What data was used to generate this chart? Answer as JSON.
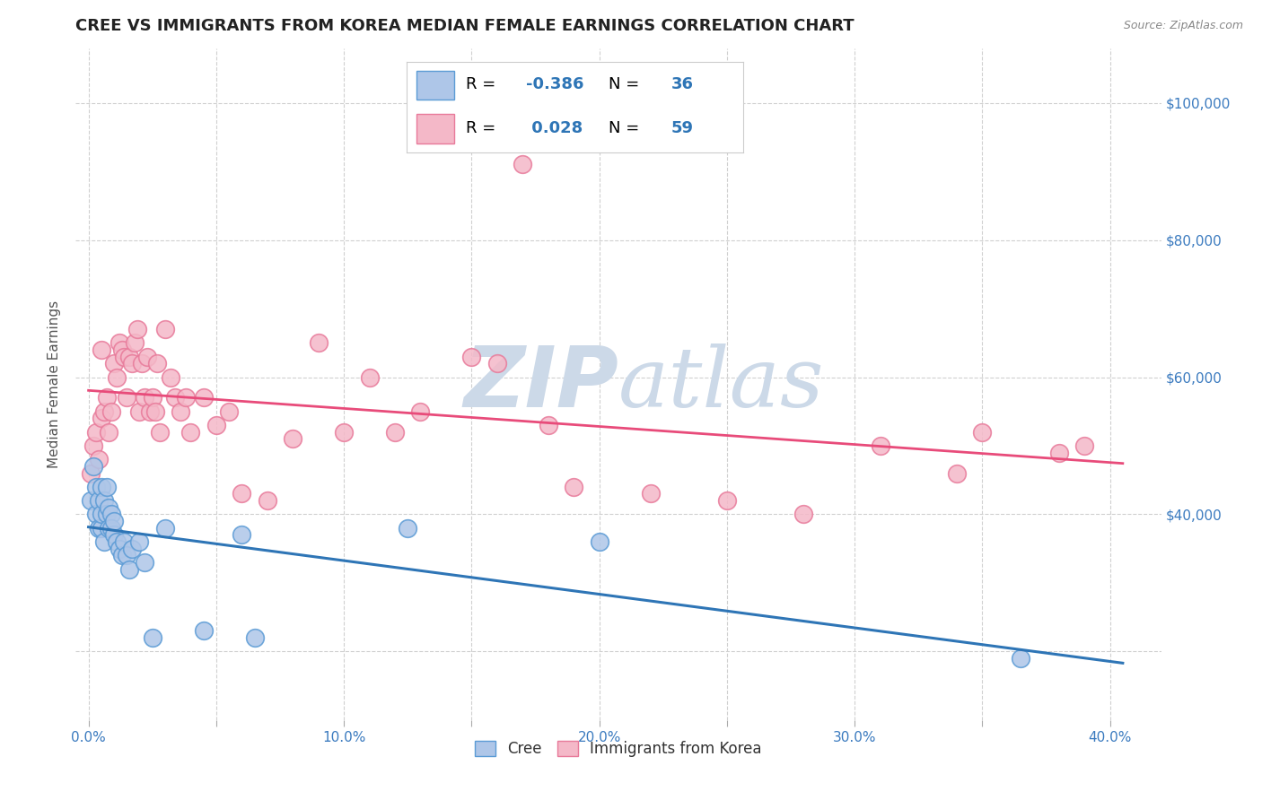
{
  "title": "CREE VS IMMIGRANTS FROM KOREA MEDIAN FEMALE EARNINGS CORRELATION CHART",
  "source": "Source: ZipAtlas.com",
  "ylabel": "Median Female Earnings",
  "xlim": [
    -0.005,
    0.42
  ],
  "ylim": [
    10000,
    108000
  ],
  "xticks": [
    0.0,
    0.05,
    0.1,
    0.15,
    0.2,
    0.25,
    0.3,
    0.35,
    0.4
  ],
  "xticklabels": [
    "0.0%",
    "",
    "10.0%",
    "",
    "20.0%",
    "",
    "30.0%",
    "",
    "40.0%"
  ],
  "ytick_positions": [
    20000,
    40000,
    60000,
    80000,
    100000
  ],
  "right_ytick_labels": [
    "",
    "$40,000",
    "$60,000",
    "$80,000",
    "$100,000"
  ],
  "cree_R": -0.386,
  "cree_N": 36,
  "korea_R": 0.028,
  "korea_N": 59,
  "cree_color": "#aec6e8",
  "cree_edge_color": "#5b9bd5",
  "korea_color": "#f4b8c8",
  "korea_edge_color": "#e87a9a",
  "cree_line_color": "#2e75b6",
  "korea_line_color": "#e84b7a",
  "background_color": "#ffffff",
  "grid_color": "#d0d0d0",
  "watermark_color": "#ccd9e8",
  "cree_x": [
    0.001,
    0.002,
    0.003,
    0.003,
    0.004,
    0.004,
    0.005,
    0.005,
    0.005,
    0.006,
    0.006,
    0.007,
    0.007,
    0.008,
    0.008,
    0.009,
    0.009,
    0.01,
    0.01,
    0.011,
    0.012,
    0.013,
    0.014,
    0.015,
    0.016,
    0.017,
    0.02,
    0.022,
    0.025,
    0.03,
    0.045,
    0.06,
    0.065,
    0.125,
    0.2,
    0.365
  ],
  "cree_y": [
    42000,
    47000,
    40000,
    44000,
    38000,
    42000,
    38000,
    40000,
    44000,
    36000,
    42000,
    40000,
    44000,
    38000,
    41000,
    40000,
    38000,
    37000,
    39000,
    36000,
    35000,
    34000,
    36000,
    34000,
    32000,
    35000,
    36000,
    33000,
    22000,
    38000,
    23000,
    37000,
    22000,
    38000,
    36000,
    19000
  ],
  "korea_x": [
    0.001,
    0.002,
    0.003,
    0.004,
    0.005,
    0.005,
    0.006,
    0.007,
    0.008,
    0.009,
    0.01,
    0.011,
    0.012,
    0.013,
    0.014,
    0.015,
    0.016,
    0.017,
    0.018,
    0.019,
    0.02,
    0.021,
    0.022,
    0.023,
    0.024,
    0.025,
    0.026,
    0.027,
    0.028,
    0.03,
    0.032,
    0.034,
    0.036,
    0.038,
    0.04,
    0.045,
    0.05,
    0.055,
    0.06,
    0.07,
    0.08,
    0.09,
    0.1,
    0.11,
    0.12,
    0.13,
    0.15,
    0.16,
    0.17,
    0.18,
    0.19,
    0.22,
    0.25,
    0.28,
    0.31,
    0.34,
    0.35,
    0.38,
    0.39
  ],
  "korea_y": [
    46000,
    50000,
    52000,
    48000,
    54000,
    64000,
    55000,
    57000,
    52000,
    55000,
    62000,
    60000,
    65000,
    64000,
    63000,
    57000,
    63000,
    62000,
    65000,
    67000,
    55000,
    62000,
    57000,
    63000,
    55000,
    57000,
    55000,
    62000,
    52000,
    67000,
    60000,
    57000,
    55000,
    57000,
    52000,
    57000,
    53000,
    55000,
    43000,
    42000,
    51000,
    65000,
    52000,
    60000,
    52000,
    55000,
    63000,
    62000,
    91000,
    53000,
    44000,
    43000,
    42000,
    40000,
    50000,
    46000,
    52000,
    49000,
    50000
  ]
}
